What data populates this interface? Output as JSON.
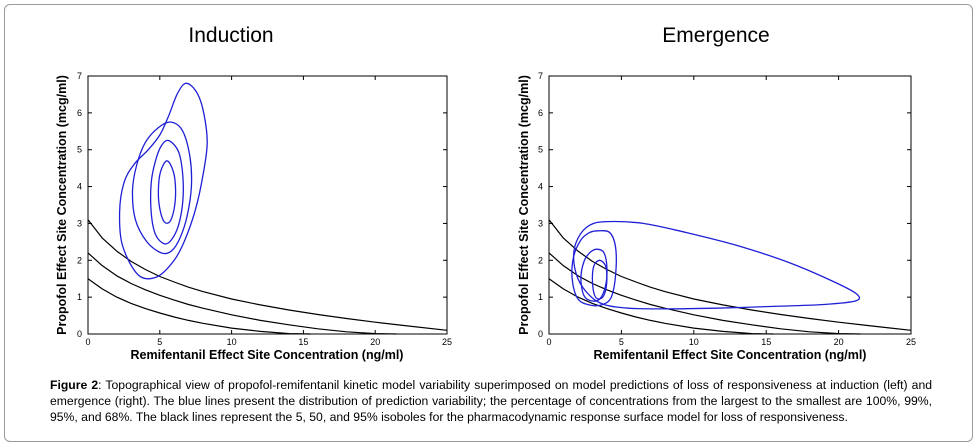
{
  "chart_data": [
    {
      "type": "line",
      "title": "Induction",
      "xlabel": "Remifentanil Effect Site Concentration (ng/ml)",
      "ylabel": "Propofol Effect Site Concentration (mcg/ml)",
      "xlim": [
        0,
        25
      ],
      "ylim": [
        0,
        7
      ],
      "xticks": [
        "0",
        "5",
        "10",
        "15",
        "20",
        "25"
      ],
      "yticks": [
        "0",
        "1",
        "2",
        "3",
        "4",
        "5",
        "6",
        "7"
      ],
      "grid": false,
      "isoboles_color": "#000000",
      "contours_color": "#1f1fd6",
      "isoboles": [
        {
          "level": "95%",
          "x": [
            0,
            1,
            2,
            3,
            4,
            5,
            6,
            7,
            8,
            10,
            12,
            14,
            16,
            18,
            20,
            22,
            25
          ],
          "y": [
            3.1,
            2.6,
            2.25,
            1.97,
            1.75,
            1.56,
            1.41,
            1.27,
            1.15,
            0.95,
            0.79,
            0.65,
            0.53,
            0.42,
            0.32,
            0.23,
            0.1
          ]
        },
        {
          "level": "50%",
          "x": [
            0,
            1,
            2,
            3,
            4,
            5,
            6,
            7,
            8,
            10,
            12,
            14,
            16,
            18,
            20,
            21.5
          ],
          "y": [
            2.2,
            1.85,
            1.58,
            1.37,
            1.2,
            1.05,
            0.92,
            0.8,
            0.7,
            0.52,
            0.37,
            0.25,
            0.14,
            0.06,
            0.01,
            0
          ]
        },
        {
          "level": "5%",
          "x": [
            0,
            1,
            2,
            3,
            4,
            5,
            6,
            7,
            8,
            10,
            12,
            14,
            15.5
          ],
          "y": [
            1.5,
            1.22,
            1.0,
            0.83,
            0.69,
            0.57,
            0.46,
            0.37,
            0.29,
            0.16,
            0.07,
            0.01,
            0
          ]
        }
      ],
      "contours": [
        {
          "level": "100%",
          "x": [
            6.8,
            7.5,
            8.0,
            8.3,
            8.0,
            7.5,
            6.8,
            6.0,
            4.8,
            3.5,
            2.4,
            2.2,
            2.5,
            3.2,
            4.2,
            5.0,
            5.6,
            6.2,
            6.8
          ],
          "y": [
            6.8,
            6.6,
            6.1,
            5.2,
            4.3,
            3.4,
            2.6,
            2.0,
            1.55,
            1.6,
            2.4,
            3.3,
            4.1,
            4.6,
            5.0,
            5.4,
            5.9,
            6.5,
            6.8
          ]
        },
        {
          "level": "99%",
          "x": [
            5.8,
            6.6,
            7.1,
            7.2,
            6.9,
            6.4,
            5.8,
            5.1,
            4.1,
            3.3,
            3.1,
            3.4,
            4.0,
            4.9,
            5.8
          ],
          "y": [
            5.75,
            5.5,
            4.8,
            4.0,
            3.2,
            2.6,
            2.25,
            2.2,
            2.5,
            3.1,
            3.9,
            4.6,
            5.2,
            5.6,
            5.75
          ]
        },
        {
          "level": "95%",
          "x": [
            5.6,
            6.3,
            6.6,
            6.6,
            6.3,
            5.8,
            5.3,
            4.7,
            4.4,
            4.4,
            4.7,
            5.1,
            5.6
          ],
          "y": [
            5.25,
            4.95,
            4.3,
            3.6,
            2.95,
            2.55,
            2.45,
            2.7,
            3.3,
            4.1,
            4.7,
            5.1,
            5.25
          ]
        },
        {
          "level": "68%",
          "x": [
            5.5,
            5.95,
            6.1,
            6.0,
            5.7,
            5.3,
            5.0,
            4.9,
            5.05,
            5.5
          ],
          "y": [
            4.7,
            4.4,
            3.9,
            3.4,
            3.05,
            3.05,
            3.4,
            3.9,
            4.4,
            4.7
          ]
        }
      ]
    },
    {
      "type": "line",
      "title": "Emergence",
      "xlabel": "Remifentanil Effect Site Concentration (ng/ml)",
      "ylabel": "Propofol Effect Site Concentration (mcg/ml)",
      "xlim": [
        0,
        25
      ],
      "ylim": [
        0,
        7
      ],
      "xticks": [
        "0",
        "5",
        "10",
        "15",
        "20",
        "25"
      ],
      "yticks": [
        "0",
        "1",
        "2",
        "3",
        "4",
        "5",
        "6",
        "7"
      ],
      "grid": false,
      "isoboles_color": "#000000",
      "contours_color": "#1f1fd6",
      "isoboles": [
        {
          "level": "95%",
          "x": [
            0,
            1,
            2,
            3,
            4,
            5,
            6,
            7,
            8,
            10,
            12,
            14,
            16,
            18,
            20,
            22,
            25
          ],
          "y": [
            3.1,
            2.6,
            2.25,
            1.97,
            1.75,
            1.56,
            1.41,
            1.27,
            1.15,
            0.95,
            0.79,
            0.65,
            0.53,
            0.42,
            0.32,
            0.23,
            0.1
          ]
        },
        {
          "level": "50%",
          "x": [
            0,
            1,
            2,
            3,
            4,
            5,
            6,
            7,
            8,
            10,
            12,
            14,
            16,
            18,
            20,
            21.5
          ],
          "y": [
            2.2,
            1.85,
            1.58,
            1.37,
            1.2,
            1.05,
            0.92,
            0.8,
            0.7,
            0.52,
            0.37,
            0.25,
            0.14,
            0.06,
            0.01,
            0
          ]
        },
        {
          "level": "5%",
          "x": [
            0,
            1,
            2,
            3,
            4,
            5,
            6,
            7,
            8,
            10,
            12,
            14,
            15.5
          ],
          "y": [
            1.5,
            1.22,
            1.0,
            0.83,
            0.69,
            0.57,
            0.46,
            0.37,
            0.29,
            0.16,
            0.07,
            0.01,
            0
          ]
        }
      ],
      "contours": [
        {
          "level": "100%",
          "x": [
            4.0,
            6.5,
            9.5,
            13.0,
            16.5,
            19.5,
            21.2,
            21.2,
            19.0,
            15.5,
            11.5,
            8.0,
            5.5,
            3.8,
            2.8,
            2.0,
            1.7,
            2.0,
            2.8,
            4.0
          ],
          "y": [
            3.05,
            3.0,
            2.75,
            2.4,
            1.95,
            1.45,
            1.1,
            0.9,
            0.8,
            0.75,
            0.7,
            0.68,
            0.7,
            0.8,
            1.05,
            1.5,
            2.1,
            2.6,
            2.95,
            3.05
          ]
        },
        {
          "level": "99%",
          "x": [
            3.4,
            4.2,
            4.6,
            4.6,
            4.3,
            3.7,
            2.9,
            2.0,
            1.6,
            1.7,
            2.2,
            2.8,
            3.4
          ],
          "y": [
            2.8,
            2.75,
            2.35,
            1.6,
            1.0,
            0.8,
            0.78,
            0.95,
            1.5,
            2.1,
            2.55,
            2.75,
            2.8
          ]
        },
        {
          "level": "95%",
          "x": [
            3.3,
            3.8,
            4.0,
            3.9,
            3.5,
            2.9,
            2.4,
            2.2,
            2.4,
            2.8,
            3.3
          ],
          "y": [
            2.3,
            2.2,
            1.8,
            1.3,
            0.95,
            0.9,
            1.05,
            1.5,
            1.95,
            2.2,
            2.3
          ]
        },
        {
          "level": "68%",
          "x": [
            3.5,
            3.9,
            4.0,
            3.85,
            3.5,
            3.15,
            3.0,
            3.1,
            3.5
          ],
          "y": [
            2.0,
            1.85,
            1.5,
            1.1,
            0.95,
            1.05,
            1.45,
            1.85,
            2.0
          ]
        }
      ]
    }
  ],
  "caption": {
    "label": "Figure 2",
    "text": ": Topographical view of propofol-remifentanil kinetic model variability superimposed on model predictions of loss of responsiveness at induction (left) and emergence (right). The blue lines present the distribution of prediction variability; the percentage of concentrations from the largest to the smallest are 100%, 99%, 95%, and 68%. The black lines represent the 5, 50, and 95% isoboles for the pharmacodynamic response surface model for loss of responsiveness."
  }
}
